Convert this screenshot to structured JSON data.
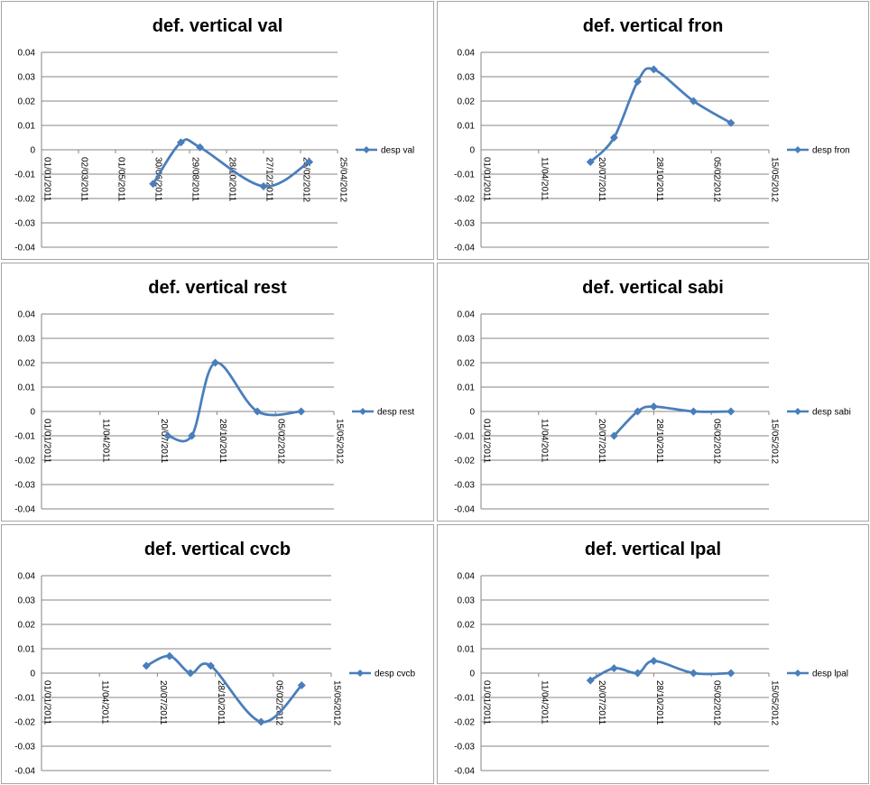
{
  "colors": {
    "series": "#4a7ebb",
    "grid": "#868686",
    "border": "#a6a6a6"
  },
  "chart_data": [
    {
      "type": "line",
      "title": "def. vertical val",
      "ylim": [
        -0.04,
        0.04
      ],
      "yticks": [
        "0.04",
        "0.03",
        "0.02",
        "0.01",
        "0",
        "-0.01",
        "-0.02",
        "-0.03",
        "-0.04"
      ],
      "xlim": [
        "2011-01-01",
        "2012-04-25"
      ],
      "xticks": [
        "01/01/2011",
        "02/03/2011",
        "01/05/2011",
        "30/06/2011",
        "29/08/2011",
        "28/10/2011",
        "27/12/2011",
        "25/02/2012",
        "25/04/2012"
      ],
      "legend": "right",
      "grid": true,
      "series": [
        {
          "name": "desp val",
          "x": [
            "2011-07-01",
            "2011-08-15",
            "2011-09-15",
            "2011-12-27",
            "2012-03-10"
          ],
          "y": [
            -0.014,
            0.003,
            0.001,
            -0.015,
            -0.005
          ]
        }
      ]
    },
    {
      "type": "line",
      "title": "def. vertical fron",
      "ylim": [
        -0.04,
        0.04
      ],
      "yticks": [
        "0.04",
        "0.03",
        "0.02",
        "0.01",
        "0",
        "-0.01",
        "-0.02",
        "-0.03",
        "-0.04"
      ],
      "xlim": [
        "2011-01-01",
        "2012-05-15"
      ],
      "xticks": [
        "01/01/2011",
        "11/04/2011",
        "20/07/2011",
        "28/10/2011",
        "05/02/2012",
        "15/05/2012"
      ],
      "legend": "right",
      "grid": true,
      "series": [
        {
          "name": "desp fron",
          "x": [
            "2011-07-10",
            "2011-08-20",
            "2011-09-30",
            "2011-10-28",
            "2012-01-05",
            "2012-03-10"
          ],
          "y": [
            -0.005,
            0.005,
            0.028,
            0.033,
            0.02,
            0.011
          ]
        }
      ]
    },
    {
      "type": "line",
      "title": "def. vertical rest",
      "ylim": [
        -0.04,
        0.04
      ],
      "yticks": [
        "0.04",
        "0.03",
        "0.02",
        "0.01",
        "0",
        "-0.01",
        "-0.02",
        "-0.03",
        "-0.04"
      ],
      "xlim": [
        "2011-01-01",
        "2012-05-15"
      ],
      "xticks": [
        "01/01/2011",
        "11/04/2011",
        "20/07/2011",
        "28/10/2011",
        "05/02/2012",
        "15/05/2012"
      ],
      "legend": "right",
      "grid": true,
      "series": [
        {
          "name": "desp rest",
          "x": [
            "2011-08-05",
            "2011-09-15",
            "2011-10-25",
            "2012-01-05",
            "2012-03-20"
          ],
          "y": [
            -0.01,
            -0.01,
            0.02,
            0,
            0
          ]
        }
      ]
    },
    {
      "type": "line",
      "title": "def. vertical sabi",
      "ylim": [
        -0.04,
        0.04
      ],
      "yticks": [
        "0.04",
        "0.03",
        "0.02",
        "0.01",
        "0",
        "-0.01",
        "-0.02",
        "-0.03",
        "-0.04"
      ],
      "xlim": [
        "2011-01-01",
        "2012-05-15"
      ],
      "xticks": [
        "01/01/2011",
        "11/04/2011",
        "20/07/2011",
        "28/10/2011",
        "05/02/2012",
        "15/05/2012"
      ],
      "legend": "right",
      "grid": true,
      "series": [
        {
          "name": "desp sabi",
          "x": [
            "2011-08-20",
            "2011-09-30",
            "2011-10-28",
            "2012-01-05",
            "2012-03-10"
          ],
          "y": [
            -0.01,
            0,
            0.002,
            0,
            0
          ]
        }
      ]
    },
    {
      "type": "line",
      "title": "def. vertical cvcb",
      "ylim": [
        -0.04,
        0.04
      ],
      "yticks": [
        "0.04",
        "0.03",
        "0.02",
        "0.01",
        "0",
        "-0.01",
        "-0.02",
        "-0.03",
        "-0.04"
      ],
      "xlim": [
        "2011-01-01",
        "2012-05-15"
      ],
      "xticks": [
        "01/01/2011",
        "11/04/2011",
        "20/07/2011",
        "28/10/2011",
        "05/02/2012",
        "15/05/2012"
      ],
      "legend": "right",
      "grid": true,
      "series": [
        {
          "name": "desp cvcb",
          "x": [
            "2011-07-01",
            "2011-08-10",
            "2011-09-15",
            "2011-10-20",
            "2012-01-15",
            "2012-03-25"
          ],
          "y": [
            0.003,
            0.007,
            0,
            0.003,
            -0.02,
            -0.005
          ]
        }
      ]
    },
    {
      "type": "line",
      "title": "def. vertical lpal",
      "ylim": [
        -0.04,
        0.04
      ],
      "yticks": [
        "0.04",
        "0.03",
        "0.02",
        "0.01",
        "0",
        "-0.01",
        "-0.02",
        "-0.03",
        "-0.04"
      ],
      "xlim": [
        "2011-01-01",
        "2012-05-15"
      ],
      "xticks": [
        "01/01/2011",
        "11/04/2011",
        "20/07/2011",
        "28/10/2011",
        "05/02/2012",
        "15/05/2012"
      ],
      "legend": "right",
      "grid": true,
      "series": [
        {
          "name": "desp lpal",
          "x": [
            "2011-07-10",
            "2011-08-20",
            "2011-09-30",
            "2011-10-28",
            "2012-01-05",
            "2012-03-10"
          ],
          "y": [
            -0.003,
            0.002,
            0,
            0.005,
            0,
            0
          ]
        }
      ]
    }
  ]
}
